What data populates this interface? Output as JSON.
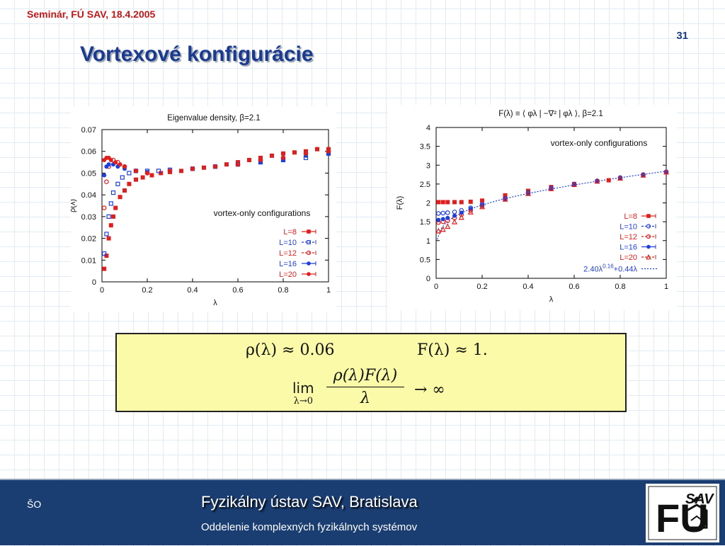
{
  "header": {
    "seminar": "Seminár, FÚ SAV, 18.4.2005",
    "slide_number": "31",
    "title": "Vortexové konfigurácie"
  },
  "colors": {
    "red": "#e01e1e",
    "blue": "#1f3fd9"
  },
  "chart_data": [
    {
      "type": "scatter",
      "title": "Eigenvalue density, β=2.1",
      "xlabel": "λ",
      "ylabel": "ρ(λ)",
      "xlim": [
        0,
        1
      ],
      "ylim": [
        0,
        0.07
      ],
      "xticks": [
        "0",
        "0.2",
        "0.4",
        "0.6",
        "0.8",
        "1"
      ],
      "yticks": [
        "0",
        "0.01",
        "0.02",
        "0.03",
        "0.04",
        "0.05",
        "0.06",
        "0.07"
      ],
      "annotation": "vortex-only configurations",
      "legend_position": "bottom-right",
      "series": [
        {
          "name": "L=8",
          "color": "#e01e1e",
          "marker": "filled-square",
          "x": [
            0.01,
            0.02,
            0.03,
            0.04,
            0.05,
            0.06,
            0.08,
            0.1,
            0.12,
            0.15,
            0.18,
            0.22,
            0.26,
            0.3,
            0.35,
            0.4,
            0.45,
            0.5,
            0.55,
            0.6,
            0.65,
            0.7,
            0.75,
            0.8,
            0.85,
            0.9,
            0.95,
            1.0
          ],
          "y": [
            0.006,
            0.012,
            0.02,
            0.026,
            0.03,
            0.034,
            0.039,
            0.042,
            0.045,
            0.047,
            0.048,
            0.049,
            0.05,
            0.0505,
            0.051,
            0.052,
            0.0525,
            0.053,
            0.054,
            0.055,
            0.056,
            0.057,
            0.058,
            0.059,
            0.0595,
            0.06,
            0.061,
            0.061
          ]
        },
        {
          "name": "L=10",
          "color": "#1f3fd9",
          "marker": "open-square",
          "x": [
            0.01,
            0.02,
            0.03,
            0.04,
            0.05,
            0.07,
            0.09,
            0.12,
            0.15,
            0.2,
            0.25,
            0.3,
            0.4,
            0.5,
            0.6,
            0.7,
            0.8,
            0.9,
            1.0
          ],
          "y": [
            0.013,
            0.022,
            0.03,
            0.036,
            0.041,
            0.045,
            0.048,
            0.05,
            0.051,
            0.051,
            0.051,
            0.0515,
            0.052,
            0.053,
            0.054,
            0.055,
            0.056,
            0.057,
            0.059
          ]
        },
        {
          "name": "L=12",
          "color": "#e01e1e",
          "marker": "open-circle",
          "x": [
            0.01,
            0.02,
            0.03,
            0.05,
            0.07,
            0.1,
            0.15,
            0.2,
            0.3,
            0.4,
            0.5,
            0.6,
            0.7,
            0.8,
            0.9,
            1.0
          ],
          "y": [
            0.034,
            0.046,
            0.053,
            0.056,
            0.055,
            0.053,
            0.051,
            0.05,
            0.051,
            0.052,
            0.053,
            0.054,
            0.056,
            0.057,
            0.059,
            0.06
          ]
        },
        {
          "name": "L=16",
          "color": "#1f3fd9",
          "marker": "filled-circle",
          "x": [
            0.01,
            0.02,
            0.03,
            0.05,
            0.07,
            0.1,
            0.15,
            0.2,
            0.3,
            0.4,
            0.5,
            0.6,
            0.7,
            0.8,
            0.9,
            1.0
          ],
          "y": [
            0.049,
            0.053,
            0.054,
            0.054,
            0.053,
            0.052,
            0.051,
            0.0505,
            0.051,
            0.052,
            0.053,
            0.054,
            0.055,
            0.056,
            0.058,
            0.059
          ]
        },
        {
          "name": "L=20",
          "color": "#e01e1e",
          "marker": "filled-circle",
          "x": [
            0.01,
            0.02,
            0.03,
            0.04,
            0.06,
            0.08,
            0.1,
            0.15,
            0.2,
            0.3,
            0.4,
            0.5,
            0.6,
            0.7,
            0.8,
            0.9,
            1.0
          ],
          "y": [
            0.056,
            0.057,
            0.057,
            0.056,
            0.055,
            0.054,
            0.053,
            0.051,
            0.05,
            0.051,
            0.052,
            0.053,
            0.054,
            0.056,
            0.057,
            0.059,
            0.06
          ]
        }
      ]
    },
    {
      "type": "scatter",
      "title": "F(λ) ≡ ⟨ φλ | −∇² | φλ ⟩, β=2.1",
      "xlabel": "λ",
      "ylabel": "F(λ)",
      "xlim": [
        0,
        1
      ],
      "ylim": [
        0,
        4
      ],
      "xticks": [
        "0",
        "0.2",
        "0.4",
        "0.6",
        "0.8",
        "1"
      ],
      "yticks": [
        "0",
        "0.5",
        "1",
        "1.5",
        "2",
        "2.5",
        "3",
        "3.5",
        "4"
      ],
      "annotation": "vortex-only configurations",
      "legend_position": "bottom-right",
      "series": [
        {
          "name": "L=8",
          "color": "#e01e1e",
          "marker": "filled-square",
          "x": [
            0.01,
            0.03,
            0.05,
            0.08,
            0.11,
            0.15,
            0.2,
            0.3,
            0.4,
            0.5,
            0.6,
            0.7,
            0.75
          ],
          "y": [
            2.02,
            2.02,
            2.02,
            2.02,
            2.02,
            2.03,
            2.06,
            2.2,
            2.32,
            2.42,
            2.5,
            2.57,
            2.6
          ]
        },
        {
          "name": "L=10",
          "color": "#1f3fd9",
          "marker": "open-circle",
          "x": [
            0.01,
            0.03,
            0.05,
            0.08,
            0.11,
            0.15,
            0.2,
            0.3,
            0.4,
            0.5,
            0.6,
            0.7,
            0.8,
            0.9,
            1.0
          ],
          "y": [
            1.72,
            1.73,
            1.74,
            1.76,
            1.8,
            1.87,
            1.96,
            2.12,
            2.27,
            2.4,
            2.5,
            2.58,
            2.67,
            2.75,
            2.82
          ]
        },
        {
          "name": "L=12",
          "color": "#e01e1e",
          "marker": "open-circle",
          "x": [
            0.01,
            0.03,
            0.05,
            0.08,
            0.11,
            0.15,
            0.2,
            0.3,
            0.4,
            0.5,
            0.6,
            0.7,
            0.8,
            0.9,
            1.0
          ],
          "y": [
            1.48,
            1.5,
            1.53,
            1.6,
            1.69,
            1.8,
            1.92,
            2.1,
            2.25,
            2.38,
            2.48,
            2.58,
            2.66,
            2.74,
            2.82
          ]
        },
        {
          "name": "L=16",
          "color": "#1f3fd9",
          "marker": "filled-circle",
          "x": [
            0.01,
            0.03,
            0.05,
            0.08,
            0.11,
            0.15,
            0.2,
            0.3,
            0.4,
            0.5,
            0.6,
            0.7,
            0.8,
            0.9,
            1.0
          ],
          "y": [
            1.55,
            1.57,
            1.6,
            1.66,
            1.74,
            1.84,
            1.94,
            2.11,
            2.26,
            2.39,
            2.49,
            2.59,
            2.67,
            2.75,
            2.83
          ]
        },
        {
          "name": "L=20",
          "color": "#e01e1e",
          "marker": "open-triangle",
          "x": [
            0.01,
            0.03,
            0.05,
            0.08,
            0.11,
            0.15,
            0.2,
            0.3,
            0.4,
            0.5,
            0.6,
            0.7,
            0.8,
            0.9,
            1.0
          ],
          "y": [
            1.26,
            1.3,
            1.38,
            1.5,
            1.62,
            1.76,
            1.9,
            2.1,
            2.25,
            2.38,
            2.49,
            2.58,
            2.66,
            2.74,
            2.82
          ]
        }
      ],
      "fit": {
        "name": "2.40λ^0.16+0.44λ",
        "label_main": "2.40λ",
        "label_exp": "0.16",
        "label_tail": "+0.44λ",
        "color": "#1f3fd9",
        "coef_a": 2.4,
        "exponent": 0.16,
        "coef_b": 0.44
      }
    }
  ],
  "formula": {
    "line1_left": "ρ(λ) ≈ 0.06",
    "line1_right": "F(λ) ≈ 1.",
    "lim_word": "lim",
    "lim_sub": "λ→0",
    "frac_num": "ρ(λ)F(λ)",
    "frac_den": "λ",
    "limit_value": "→ ∞"
  },
  "footer": {
    "author": "ŠO",
    "institute": "Fyzikálny ústav SAV, Bratislava",
    "department": "Oddelenie komplexných fyzikálnych systémov",
    "logo_text": "SAV",
    "logo_letters": "FÚ"
  }
}
